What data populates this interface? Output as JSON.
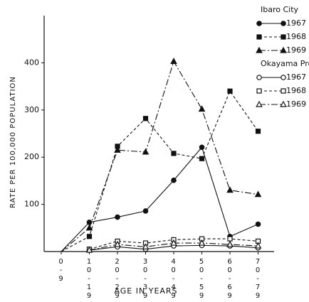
{
  "chart_data": {
    "type": "line",
    "x_label": "AGE IN YEARS",
    "y_label": "RATE PER 100,000 POPULATION",
    "categories": [
      "0-9",
      "10-19",
      "20-29",
      "30-39",
      "40-49",
      "50-59",
      "60-69",
      "70-79"
    ],
    "ylim": [
      0,
      500
    ],
    "yticks": [
      100,
      200,
      300,
      400
    ],
    "legend_groups": [
      {
        "title": "Ibaro City",
        "series": [
          0,
          1,
          2
        ]
      },
      {
        "title": "Okayama Pref.",
        "series": [
          3,
          4,
          5
        ]
      }
    ],
    "series": [
      {
        "name": "1967",
        "color": "#111111",
        "marker": "circle",
        "filled": true,
        "dash": "solid",
        "values": [
          0,
          62,
          73,
          86,
          151,
          221,
          32,
          58
        ]
      },
      {
        "name": "1968",
        "color": "#111111",
        "marker": "square",
        "filled": true,
        "dash": "dashed",
        "values": [
          0,
          32,
          223,
          282,
          208,
          197,
          340,
          255
        ]
      },
      {
        "name": "1969",
        "color": "#111111",
        "marker": "triangle",
        "filled": true,
        "dash": "dashdot",
        "values": [
          0,
          50,
          215,
          211,
          403,
          302,
          130,
          121
        ]
      },
      {
        "name": "1967",
        "color": "#111111",
        "marker": "circle",
        "filled": false,
        "dash": "solid",
        "values": [
          null,
          3,
          10,
          5,
          12,
          13,
          12,
          8
        ]
      },
      {
        "name": "1968",
        "color": "#111111",
        "marker": "square",
        "filled": false,
        "dash": "dashed",
        "values": [
          null,
          5,
          22,
          18,
          25,
          27,
          27,
          22
        ]
      },
      {
        "name": "1969",
        "color": "#111111",
        "marker": "triangle",
        "filled": false,
        "dash": "dashdot",
        "values": [
          null,
          3,
          15,
          10,
          18,
          18,
          15,
          12
        ]
      }
    ]
  }
}
